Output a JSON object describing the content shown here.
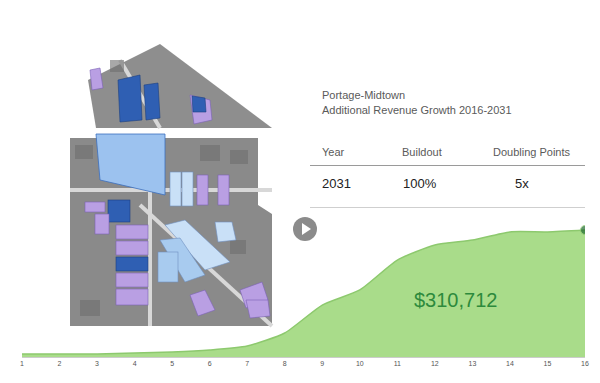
{
  "chart_data": {
    "type": "area",
    "x": [
      1,
      2,
      3,
      4,
      5,
      6,
      7,
      8,
      9,
      10,
      11,
      12,
      13,
      14,
      15,
      16
    ],
    "values": [
      7300,
      7300,
      7300,
      9800,
      12200,
      17100,
      26900,
      58700,
      127000,
      164000,
      237000,
      274000,
      286000,
      306000,
      306000,
      310712
    ],
    "color": "#8dc96e",
    "marker": "circle",
    "annotations": [
      "$310,712"
    ],
    "xlim": [
      1,
      16
    ],
    "xticks": [
      1,
      2,
      3,
      4,
      5,
      6,
      7,
      8,
      9,
      10,
      11,
      12,
      13,
      14,
      15,
      16
    ],
    "ylim": [
      0,
      384000
    ],
    "yticks": [],
    "tick_labels": "x",
    "grid": false
  },
  "header": {
    "title": "Portage-Midtown",
    "subtitle": "Additional Revenue Growth 2016-2031"
  },
  "table": {
    "columns": [
      "Year",
      "Buildout",
      "Doubling Points"
    ],
    "rows": [
      [
        "2031",
        "100%",
        "5x"
      ]
    ]
  }
}
